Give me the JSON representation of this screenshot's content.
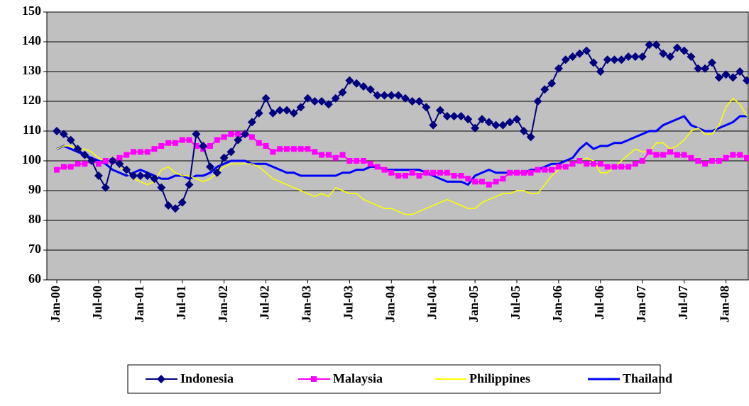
{
  "chart_data": {
    "type": "line",
    "categories": [
      "Jan-00",
      null,
      null,
      null,
      null,
      null,
      "Jul-00",
      null,
      null,
      null,
      null,
      null,
      "Jan-01",
      null,
      null,
      null,
      null,
      null,
      "Jul-01",
      null,
      null,
      null,
      null,
      null,
      "Jan-02",
      null,
      null,
      null,
      null,
      null,
      "Jul-02",
      null,
      null,
      null,
      null,
      null,
      "Jan-03",
      null,
      null,
      null,
      null,
      null,
      "Jul-03",
      null,
      null,
      null,
      null,
      null,
      "Jan-04",
      null,
      null,
      null,
      null,
      null,
      "Jul-04",
      null,
      null,
      null,
      null,
      null,
      "Jan-05",
      null,
      null,
      null,
      null,
      null,
      "Jul-05",
      null,
      null,
      null,
      null,
      null,
      "Jan-06",
      null,
      null,
      null,
      null,
      null,
      "Jul-06",
      null,
      null,
      null,
      null,
      null,
      "Jan-07",
      null,
      null,
      null,
      null,
      null,
      "Jul-07",
      null,
      null,
      null,
      null,
      null,
      "Jan-08",
      null,
      null,
      null
    ],
    "series": [
      {
        "name": "Indonesia",
        "color": "#000080",
        "marker": "diamond",
        "values": [
          110,
          109,
          107,
          104,
          102,
          100,
          95,
          91,
          100,
          99,
          97,
          95,
          95,
          95,
          94,
          91,
          85,
          84,
          86,
          92,
          109,
          105,
          98,
          96,
          101,
          103,
          107,
          109,
          113,
          116,
          121,
          116,
          117,
          117,
          116,
          118,
          121,
          120,
          120,
          119,
          121,
          123,
          127,
          126,
          125,
          124,
          122,
          122,
          122,
          122,
          121,
          120,
          120,
          118,
          112,
          117,
          115,
          115,
          115,
          114,
          111,
          114,
          113,
          112,
          112,
          113,
          114,
          110,
          108,
          120,
          124,
          126,
          131,
          134,
          135,
          136,
          137,
          133,
          130,
          134,
          134,
          134,
          135,
          135,
          135,
          139,
          139,
          136,
          135,
          138,
          137,
          135,
          131,
          131,
          133,
          128,
          129,
          128,
          130,
          127
        ]
      },
      {
        "name": "Malaysia",
        "color": "#ff00ff",
        "marker": "square",
        "values": [
          97,
          98,
          98,
          99,
          99,
          100,
          99,
          100,
          100,
          101,
          102,
          103,
          103,
          103,
          104,
          105,
          106,
          106,
          107,
          107,
          105,
          104,
          105,
          107,
          108,
          109,
          109,
          109,
          108,
          106,
          105,
          103,
          104,
          104,
          104,
          104,
          104,
          103,
          102,
          102,
          101,
          102,
          100,
          100,
          100,
          99,
          98,
          97,
          96,
          95,
          95,
          96,
          95,
          96,
          96,
          96,
          96,
          95,
          95,
          94,
          93,
          93,
          92,
          93,
          94,
          96,
          96,
          96,
          96,
          97,
          97,
          97,
          98,
          98,
          99,
          100,
          99,
          99,
          99,
          98,
          98,
          98,
          98,
          99,
          100,
          103,
          102,
          102,
          103,
          102,
          102,
          101,
          100,
          99,
          100,
          100,
          101,
          102,
          102,
          101
        ]
      },
      {
        "name": "Philippines",
        "color": "#ffff00",
        "values": [
          104,
          105,
          105,
          104,
          104,
          103,
          101,
          100,
          100,
          98,
          96,
          94,
          93,
          92,
          93,
          97,
          98,
          96,
          95,
          95,
          94,
          93,
          94,
          96,
          98,
          99,
          99,
          99,
          99,
          98,
          96,
          94,
          93,
          92,
          91,
          90,
          89,
          88,
          89,
          88,
          91,
          90,
          89,
          89,
          87,
          86,
          85,
          84,
          84,
          83,
          82,
          82,
          83,
          84,
          85,
          86,
          87,
          86,
          85,
          84,
          84,
          86,
          87,
          88,
          89,
          89,
          90,
          90,
          89,
          89,
          92,
          95,
          97,
          98,
          99,
          100,
          101,
          100,
          96,
          96,
          98,
          100,
          102,
          104,
          103,
          103,
          106,
          106,
          104,
          105,
          107,
          110,
          111,
          109,
          109,
          112,
          118,
          121,
          119,
          115
        ]
      },
      {
        "name": "Thailand",
        "color": "#0000ff",
        "values": [
          104,
          105,
          104,
          103,
          102,
          101,
          100,
          99,
          97,
          96,
          95,
          96,
          97,
          96,
          95,
          94,
          94,
          95,
          95,
          94,
          95,
          95,
          96,
          98,
          99,
          100,
          100,
          100,
          99,
          99,
          99,
          98,
          97,
          96,
          96,
          95,
          95,
          95,
          95,
          95,
          95,
          96,
          96,
          97,
          97,
          98,
          98,
          97,
          97,
          97,
          97,
          97,
          97,
          96,
          95,
          94,
          93,
          93,
          93,
          92,
          95,
          96,
          97,
          96,
          96,
          96,
          96,
          96,
          97,
          97,
          98,
          99,
          99,
          100,
          101,
          104,
          106,
          104,
          105,
          105,
          106,
          106,
          107,
          108,
          109,
          110,
          110,
          112,
          113,
          114,
          115,
          112,
          111,
          110,
          110,
          111,
          112,
          113,
          115,
          115
        ]
      }
    ],
    "ylim": [
      60,
      150
    ],
    "yticks": [
      60,
      70,
      80,
      90,
      100,
      110,
      120,
      130,
      140,
      150
    ],
    "grid": true,
    "legend": "bottom"
  }
}
